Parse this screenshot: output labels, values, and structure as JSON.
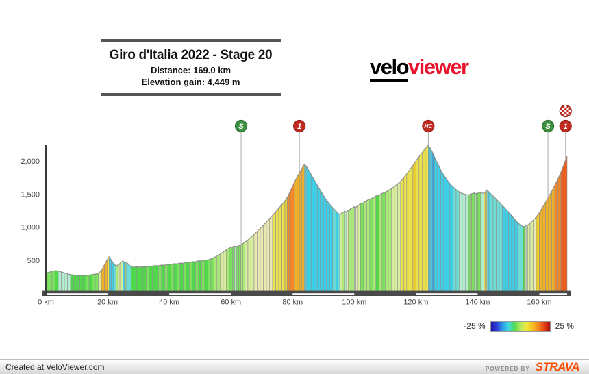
{
  "page": {
    "title_box": {
      "title": "Giro d'Italia 2022 - Stage 20",
      "distance_label": "Distance: 169.0 km",
      "elevation_label": "Elevation gain: 4,449 m"
    },
    "logo": {
      "part1": "velo",
      "part2": "viewer",
      "part2_color": "#e8132b"
    },
    "footer": {
      "left_text": "Created at VeloViewer.com",
      "powered_by": "POWERED BY",
      "brand": "STRAVA",
      "brand_color": "#fc4c02"
    }
  },
  "chart_data": {
    "type": "area",
    "title": "Giro d'Italia 2022 - Stage 20",
    "distance_km": 169.0,
    "elevation_gain_m": 4449,
    "xlabel_unit": "km",
    "ylabel_unit": "m",
    "xlim": [
      0,
      169
    ],
    "ylim": [
      0,
      2350
    ],
    "grid": false,
    "x_ticks": [
      {
        "value": 0,
        "label": "0 km"
      },
      {
        "value": 20,
        "label": "20 km"
      },
      {
        "value": 40,
        "label": "40 km"
      },
      {
        "value": 60,
        "label": "60 km"
      },
      {
        "value": 80,
        "label": "80 km"
      },
      {
        "value": 100,
        "label": "100 km"
      },
      {
        "value": 120,
        "label": "120 km"
      },
      {
        "value": 140,
        "label": "140 km"
      },
      {
        "value": 160,
        "label": "160 km"
      }
    ],
    "y_ticks": [
      {
        "value": 500,
        "label": "500"
      },
      {
        "value": 1000,
        "label": "1,000"
      },
      {
        "value": 1500,
        "label": "1,500"
      },
      {
        "value": 2000,
        "label": "2,000"
      }
    ],
    "elevation_profile": [
      [
        0,
        310
      ],
      [
        1,
        320
      ],
      [
        2,
        335
      ],
      [
        3,
        345
      ],
      [
        4,
        338
      ],
      [
        5,
        325
      ],
      [
        6,
        310
      ],
      [
        7,
        295
      ],
      [
        8,
        285
      ],
      [
        9,
        278
      ],
      [
        10,
        272
      ],
      [
        11,
        268
      ],
      [
        12,
        272
      ],
      [
        13,
        268
      ],
      [
        14,
        278
      ],
      [
        15,
        283
      ],
      [
        16,
        292
      ],
      [
        17,
        302
      ],
      [
        18,
        345
      ],
      [
        19,
        432
      ],
      [
        20,
        520
      ],
      [
        20.5,
        552
      ],
      [
        21.2,
        505
      ],
      [
        22,
        448
      ],
      [
        22.8,
        415
      ],
      [
        23.5,
        432
      ],
      [
        24,
        452
      ],
      [
        25,
        492
      ],
      [
        25.5,
        462
      ],
      [
        26,
        475
      ],
      [
        27,
        432
      ],
      [
        27.7,
        402
      ],
      [
        28.5,
        396
      ],
      [
        29.5,
        402
      ],
      [
        30.5,
        396
      ],
      [
        31.5,
        404
      ],
      [
        32.5,
        399
      ],
      [
        33.5,
        408
      ],
      [
        34.5,
        412
      ],
      [
        35.5,
        420
      ],
      [
        36.5,
        417
      ],
      [
        37.5,
        428
      ],
      [
        38.5,
        425
      ],
      [
        39.5,
        438
      ],
      [
        40.5,
        436
      ],
      [
        41.5,
        448
      ],
      [
        42.5,
        445
      ],
      [
        43.5,
        458
      ],
      [
        44.5,
        455
      ],
      [
        45.5,
        470
      ],
      [
        46.5,
        466
      ],
      [
        47.5,
        480
      ],
      [
        48.5,
        477
      ],
      [
        49.5,
        492
      ],
      [
        50.5,
        490
      ],
      [
        51.5,
        505
      ],
      [
        52.5,
        503
      ],
      [
        53.5,
        522
      ],
      [
        54.5,
        542
      ],
      [
        55.5,
        565
      ],
      [
        56.5,
        592
      ],
      [
        57.5,
        625
      ],
      [
        58.5,
        658
      ],
      [
        59.5,
        685
      ],
      [
        60.5,
        705
      ],
      [
        61.2,
        712
      ],
      [
        61.8,
        706
      ],
      [
        62.5,
        718
      ],
      [
        63.2,
        732
      ],
      [
        63.8,
        750
      ],
      [
        64.5,
        772
      ],
      [
        65.5,
        808
      ],
      [
        66.5,
        848
      ],
      [
        67.5,
        890
      ],
      [
        68.5,
        935
      ],
      [
        69.5,
        982
      ],
      [
        70.5,
        1030
      ],
      [
        71.5,
        1078
      ],
      [
        72.5,
        1128
      ],
      [
        73.5,
        1178
      ],
      [
        74.5,
        1230
      ],
      [
        75.5,
        1285
      ],
      [
        76.5,
        1340
      ],
      [
        77.5,
        1395
      ],
      [
        78.3,
        1452
      ],
      [
        79,
        1520
      ],
      [
        79.8,
        1600
      ],
      [
        80.6,
        1680
      ],
      [
        81.4,
        1752
      ],
      [
        82.2,
        1818
      ],
      [
        83,
        1885
      ],
      [
        83.8,
        1948
      ],
      [
        84.4,
        1925
      ],
      [
        85,
        1875
      ],
      [
        86,
        1795
      ],
      [
        87,
        1715
      ],
      [
        88,
        1635
      ],
      [
        89,
        1555
      ],
      [
        90,
        1478
      ],
      [
        91,
        1408
      ],
      [
        92,
        1348
      ],
      [
        93,
        1295
      ],
      [
        94,
        1248
      ],
      [
        94.7,
        1208
      ],
      [
        95.3,
        1192
      ],
      [
        96,
        1215
      ],
      [
        97,
        1240
      ],
      [
        97.5,
        1232
      ],
      [
        98,
        1255
      ],
      [
        99,
        1282
      ],
      [
        100,
        1310
      ],
      [
        100.5,
        1300
      ],
      [
        101,
        1322
      ],
      [
        102,
        1355
      ],
      [
        103,
        1370
      ],
      [
        104,
        1402
      ],
      [
        105,
        1425
      ],
      [
        106,
        1440
      ],
      [
        107,
        1472
      ],
      [
        108,
        1480
      ],
      [
        109,
        1510
      ],
      [
        110,
        1525
      ],
      [
        111,
        1555
      ],
      [
        112,
        1580
      ],
      [
        113,
        1615
      ],
      [
        114,
        1652
      ],
      [
        115,
        1690
      ],
      [
        116,
        1745
      ],
      [
        117,
        1805
      ],
      [
        118,
        1868
      ],
      [
        119,
        1932
      ],
      [
        120,
        2000
      ],
      [
        121,
        2065
      ],
      [
        122,
        2128
      ],
      [
        123,
        2188
      ],
      [
        124,
        2239
      ],
      [
        124.6,
        2195
      ],
      [
        125.3,
        2135
      ],
      [
        126,
        2060
      ],
      [
        127,
        1962
      ],
      [
        128,
        1870
      ],
      [
        129,
        1788
      ],
      [
        130,
        1718
      ],
      [
        131,
        1658
      ],
      [
        132,
        1608
      ],
      [
        133,
        1568
      ],
      [
        134,
        1532
      ],
      [
        135,
        1508
      ],
      [
        136,
        1495
      ],
      [
        137,
        1486
      ],
      [
        137.5,
        1494
      ],
      [
        138,
        1506
      ],
      [
        139,
        1516
      ],
      [
        139.5,
        1506
      ],
      [
        140,
        1513
      ],
      [
        141,
        1526
      ],
      [
        142,
        1506
      ],
      [
        142.5,
        1536
      ],
      [
        143,
        1562
      ],
      [
        143.5,
        1540
      ],
      [
        144,
        1515
      ],
      [
        145,
        1470
      ],
      [
        146,
        1425
      ],
      [
        147,
        1378
      ],
      [
        148,
        1330
      ],
      [
        149,
        1280
      ],
      [
        150,
        1228
      ],
      [
        151,
        1175
      ],
      [
        152,
        1120
      ],
      [
        153,
        1068
      ],
      [
        154,
        1030
      ],
      [
        154.7,
        1008
      ],
      [
        155.2,
        1012
      ],
      [
        155.7,
        1035
      ],
      [
        156.2,
        1028
      ],
      [
        157,
        1062
      ],
      [
        158,
        1105
      ],
      [
        159,
        1152
      ],
      [
        160,
        1218
      ],
      [
        161,
        1295
      ],
      [
        162,
        1375
      ],
      [
        163,
        1455
      ],
      [
        164,
        1540
      ],
      [
        165,
        1630
      ],
      [
        166,
        1725
      ],
      [
        167,
        1830
      ],
      [
        168,
        1950
      ],
      [
        169,
        2070
      ]
    ],
    "gradient_color_scale": [
      {
        "max_gradient": -10,
        "color": "#28a8e4"
      },
      {
        "max_gradient": -5,
        "color": "#3ecfe8"
      },
      {
        "max_gradient": -2.5,
        "color": "#6edcd4"
      },
      {
        "max_gradient": -0.8,
        "color": "#b4ecd0"
      },
      {
        "max_gradient": 0.8,
        "color": "#4fd94a"
      },
      {
        "max_gradient": 2,
        "color": "#7ce25e"
      },
      {
        "max_gradient": 3.2,
        "color": "#abe878"
      },
      {
        "max_gradient": 4.3,
        "color": "#d8eca0"
      },
      {
        "max_gradient": 5.0,
        "color": "#eae9b2"
      },
      {
        "max_gradient": 6.5,
        "color": "#ebe04e"
      },
      {
        "max_gradient": 7.5,
        "color": "#e9cd30"
      },
      {
        "max_gradient": 9,
        "color": "#eeb02a"
      },
      {
        "max_gradient": 10.8,
        "color": "#f08829"
      },
      {
        "max_gradient": 999,
        "color": "#e8611e"
      }
    ],
    "markers": [
      {
        "km": 63.3,
        "label": "S",
        "type": "sprint",
        "finish": false
      },
      {
        "km": 82.2,
        "label": "1",
        "type": "cat1",
        "finish": false
      },
      {
        "km": 124,
        "label": "HC",
        "type": "hc",
        "finish": false
      },
      {
        "km": 162.8,
        "label": "S",
        "type": "sprint",
        "finish": false
      },
      {
        "km": 168.5,
        "label": "1",
        "type": "cat1",
        "finish": true
      }
    ],
    "marker_colors": {
      "sprint": "#3d9140",
      "sprint_rim": "#2a6a2e",
      "category": "#c22b1f",
      "category_rim": "#8f1d15"
    },
    "distance_bar": {
      "stripe_km": 20,
      "bar_color": "#4a4a4a",
      "stripe_color": "#ffffff"
    },
    "legend": {
      "min_label": "-25 %",
      "max_label": "25 %",
      "position": "bottom-right",
      "gradient_colors": [
        "#2015a8",
        "#2c3fd8",
        "#2e9ce8",
        "#40d8e0",
        "#52da4e",
        "#b8e85e",
        "#eeea3c",
        "#f2c022",
        "#f48a20",
        "#e84414",
        "#a81010"
      ]
    }
  }
}
